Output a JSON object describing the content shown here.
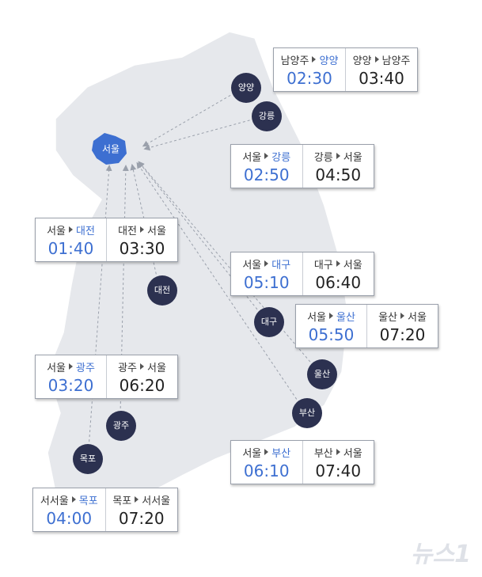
{
  "hub": "서울",
  "cities": [
    "양양",
    "강릉",
    "대전",
    "대구",
    "울산",
    "부산",
    "광주",
    "목포"
  ],
  "routes": [
    {
      "outbound": {
        "from": "남양주",
        "to": "양양",
        "time": "02:30"
      },
      "return": {
        "from": "양양",
        "to": "남양주",
        "time": "03:40"
      }
    },
    {
      "outbound": {
        "from": "서울",
        "to": "강릉",
        "time": "02:50"
      },
      "return": {
        "from": "강릉",
        "to": "서울",
        "time": "04:50"
      }
    },
    {
      "outbound": {
        "from": "서울",
        "to": "대전",
        "time": "01:40"
      },
      "return": {
        "from": "대전",
        "to": "서울",
        "time": "03:30"
      }
    },
    {
      "outbound": {
        "from": "서울",
        "to": "대구",
        "time": "05:10"
      },
      "return": {
        "from": "대구",
        "to": "서울",
        "time": "06:40"
      }
    },
    {
      "outbound": {
        "from": "서울",
        "to": "울산",
        "time": "05:50"
      },
      "return": {
        "from": "울산",
        "to": "서울",
        "time": "07:20"
      }
    },
    {
      "outbound": {
        "from": "서울",
        "to": "광주",
        "time": "03:20"
      },
      "return": {
        "from": "광주",
        "to": "서울",
        "time": "06:20"
      }
    },
    {
      "outbound": {
        "from": "서울",
        "to": "부산",
        "time": "06:10"
      },
      "return": {
        "from": "부산",
        "to": "서울",
        "time": "07:40"
      }
    },
    {
      "outbound": {
        "from": "서서울",
        "to": "목포",
        "time": "04:00"
      },
      "return": {
        "from": "목포",
        "to": "서서울",
        "time": "07:20"
      }
    }
  ],
  "watermark": "뉴스1"
}
